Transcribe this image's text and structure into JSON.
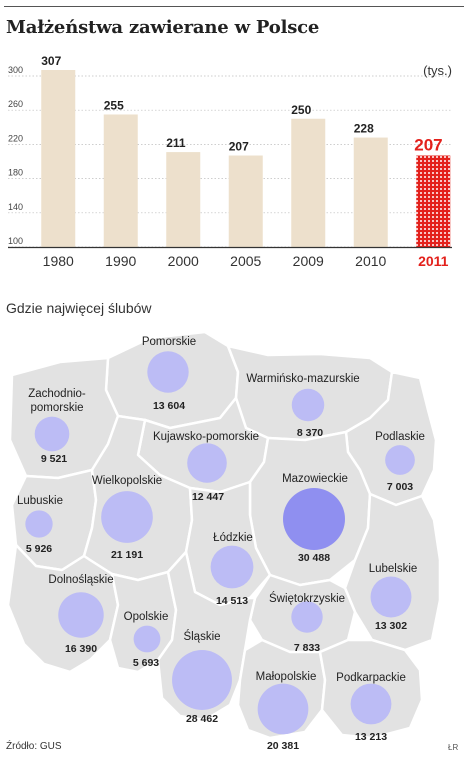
{
  "title": "Małżeństwa zawierane w Polsce",
  "subtitle": "Gdzie najwięcej ślubów",
  "source": "Źródło: GUS",
  "author": "ŁR",
  "colors": {
    "bar": "#ede0cc",
    "highlight": "#e3211c",
    "bubble": "#bcbcf5",
    "bubble_max": "#8f8ff0",
    "region_fill": "#e2e2e2",
    "region_border": "#ffffff"
  },
  "chart_data": [
    {
      "type": "bar",
      "title": "Małżeństwa zawierane w Polsce",
      "unit_label": "(tys.)",
      "categories": [
        "1980",
        "1990",
        "2000",
        "2005",
        "2009",
        "2010",
        "2011"
      ],
      "values": [
        307,
        255,
        211,
        207,
        250,
        228,
        207
      ],
      "highlight_category": "2011",
      "ylim": [
        100,
        300
      ],
      "yticks": [
        100,
        140,
        180,
        220,
        260,
        300
      ],
      "grid": true
    },
    {
      "type": "bubble-map",
      "title": "Gdzie najwięcej ślubów",
      "regions": [
        {
          "name": "Pomorskie",
          "value": 13604
        },
        {
          "name": "Zachodnio-pomorskie",
          "label_lines": [
            "Zachodnio-",
            "pomorskie"
          ],
          "value": 9521
        },
        {
          "name": "Warmińsko-mazurskie",
          "value": 8370
        },
        {
          "name": "Kujawsko-pomorskie",
          "value": 12447
        },
        {
          "name": "Podlaskie",
          "value": 7003
        },
        {
          "name": "Lubuskie",
          "value": 5926
        },
        {
          "name": "Wielkopolskie",
          "value": 21191
        },
        {
          "name": "Mazowieckie",
          "value": 30488
        },
        {
          "name": "Łódzkie",
          "value": 14513
        },
        {
          "name": "Lubelskie",
          "value": 13302
        },
        {
          "name": "Dolnośląskie",
          "value": 16390
        },
        {
          "name": "Opolskie",
          "value": 5693
        },
        {
          "name": "Świętokrzyskie",
          "value": 7833
        },
        {
          "name": "Śląskie",
          "value": 28462
        },
        {
          "name": "Małopolskie",
          "value": 20381
        },
        {
          "name": "Podkarpackie",
          "value": 13213
        }
      ]
    }
  ]
}
